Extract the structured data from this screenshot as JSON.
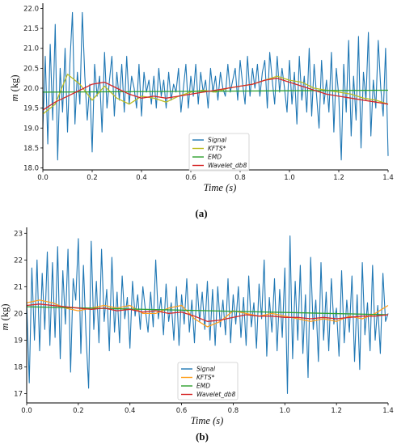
{
  "chart_data": [
    {
      "panel_label": "(a)",
      "type": "line",
      "xlabel_var": "Time",
      "xlabel_unit": "(s)",
      "ylabel_var": "m",
      "ylabel_unit": "(kg)",
      "xlim": [
        0.0,
        1.4
      ],
      "ylim": [
        17.95,
        22.05
      ],
      "xticks": [
        "0.0",
        "0.2",
        "0.4",
        "0.6",
        "0.8",
        "1.0",
        "1.2",
        "1.4"
      ],
      "yticks": [
        "18.0",
        "18.5",
        "19.0",
        "19.5",
        "20.0",
        "20.5",
        "21.0",
        "21.5",
        "22.0"
      ],
      "grid": false,
      "legend_placement": "lower-center",
      "series": [
        {
          "name": "Signal",
          "color": "#1f77b4",
          "x": [
            0,
            0.01,
            0.02,
            0.03,
            0.04,
            0.05,
            0.06,
            0.07,
            0.08,
            0.09,
            0.1,
            0.11,
            0.12,
            0.13,
            0.14,
            0.15,
            0.16,
            0.17,
            0.18,
            0.19,
            0.2,
            0.21,
            0.22,
            0.23,
            0.24,
            0.25,
            0.26,
            0.27,
            0.28,
            0.29,
            0.3,
            0.31,
            0.32,
            0.33,
            0.34,
            0.35,
            0.36,
            0.37,
            0.38,
            0.39,
            0.4,
            0.41,
            0.42,
            0.43,
            0.44,
            0.45,
            0.46,
            0.47,
            0.48,
            0.49,
            0.5,
            0.51,
            0.52,
            0.53,
            0.54,
            0.55,
            0.56,
            0.57,
            0.58,
            0.59,
            0.6,
            0.61,
            0.62,
            0.63,
            0.64,
            0.65,
            0.66,
            0.67,
            0.68,
            0.69,
            0.7,
            0.71,
            0.72,
            0.73,
            0.74,
            0.75,
            0.76,
            0.77,
            0.78,
            0.79,
            0.8,
            0.81,
            0.82,
            0.83,
            0.84,
            0.85,
            0.86,
            0.87,
            0.88,
            0.89,
            0.9,
            0.91,
            0.92,
            0.93,
            0.94,
            0.95,
            0.96,
            0.97,
            0.98,
            0.99,
            1.0,
            1.01,
            1.02,
            1.03,
            1.04,
            1.05,
            1.06,
            1.07,
            1.08,
            1.09,
            1.1,
            1.11,
            1.12,
            1.13,
            1.14,
            1.15,
            1.16,
            1.17,
            1.18,
            1.19,
            1.2,
            1.21,
            1.22,
            1.23,
            1.24,
            1.25,
            1.26,
            1.27,
            1.28,
            1.29,
            1.3,
            1.31,
            1.32,
            1.33,
            1.34,
            1.35,
            1.36,
            1.37,
            1.38,
            1.39,
            1.4
          ],
          "values": [
            19.0,
            20.8,
            18.6,
            21.1,
            19.2,
            21.6,
            18.2,
            20.5,
            19.4,
            21.0,
            18.9,
            20.7,
            21.9,
            19.1,
            20.4,
            19.6,
            21.9,
            20.3,
            19.2,
            20.1,
            18.4,
            20.6,
            19.8,
            20.3,
            18.9,
            20.9,
            19.5,
            20.2,
            20.8,
            19.3,
            20.4,
            19.7,
            20.6,
            19.4,
            20.8,
            19.6,
            20.3,
            20.0,
            19.5,
            20.6,
            19.3,
            20.4,
            19.9,
            20.2,
            19.6,
            20.3,
            19.5,
            20.5,
            19.8,
            20.2,
            19.5,
            20.4,
            19.7,
            20.1,
            19.9,
            20.5,
            19.4,
            20.0,
            20.6,
            19.5,
            20.3,
            19.8,
            20.6,
            19.6,
            20.4,
            19.9,
            20.2,
            19.5,
            20.5,
            19.9,
            20.3,
            19.7,
            20.4,
            20.0,
            19.8,
            20.6,
            19.9,
            20.2,
            20.5,
            19.7,
            20.7,
            20.1,
            19.6,
            20.8,
            19.8,
            20.5,
            20.0,
            20.6,
            19.8,
            20.4,
            20.7,
            19.5,
            20.9,
            20.2,
            19.6,
            20.8,
            19.9,
            20.5,
            20.0,
            19.4,
            20.7,
            19.6,
            20.4,
            19.1,
            20.8,
            19.7,
            20.3,
            19.4,
            21.0,
            19.3,
            20.6,
            19.8,
            19.0,
            20.7,
            19.6,
            20.2,
            19.4,
            20.9,
            18.9,
            20.5,
            19.8,
            18.2,
            20.6,
            19.4,
            21.2,
            18.8,
            20.3,
            19.2,
            21.3,
            18.5,
            20.4,
            19.7,
            21.4,
            18.8,
            20.2,
            19.5,
            21.2,
            20.0,
            19.3,
            21.0,
            18.3
          ]
        },
        {
          "name": "KFTS*",
          "color": "#bcbd22",
          "x": [
            0,
            0.05,
            0.1,
            0.15,
            0.2,
            0.25,
            0.3,
            0.35,
            0.4,
            0.45,
            0.5,
            0.55,
            0.6,
            0.65,
            0.7,
            0.75,
            0.8,
            0.85,
            0.9,
            0.95,
            1.0,
            1.05,
            1.1,
            1.15,
            1.2,
            1.25,
            1.3,
            1.35,
            1.4
          ],
          "values": [
            19.35,
            19.6,
            20.35,
            20.1,
            19.7,
            20.05,
            19.75,
            19.6,
            19.8,
            19.75,
            19.65,
            19.8,
            19.9,
            19.95,
            19.9,
            20.0,
            20.05,
            20.1,
            20.2,
            20.3,
            20.2,
            20.15,
            20.0,
            19.95,
            19.9,
            19.85,
            19.75,
            19.7,
            19.6
          ]
        },
        {
          "name": "EMD",
          "color": "#2ca02c",
          "x": [
            0,
            1.4
          ],
          "values": [
            19.9,
            19.95
          ]
        },
        {
          "name": "Wavelet_db8",
          "color": "#d62728",
          "x": [
            0,
            0.05,
            0.1,
            0.15,
            0.2,
            0.25,
            0.3,
            0.35,
            0.4,
            0.45,
            0.5,
            0.55,
            0.6,
            0.65,
            0.7,
            0.75,
            0.8,
            0.85,
            0.9,
            0.95,
            1.0,
            1.05,
            1.1,
            1.15,
            1.2,
            1.25,
            1.3,
            1.35,
            1.4
          ],
          "values": [
            19.45,
            19.65,
            19.8,
            19.95,
            20.1,
            20.15,
            20.0,
            19.85,
            19.75,
            19.8,
            19.75,
            19.8,
            19.85,
            19.9,
            19.95,
            20.0,
            20.05,
            20.1,
            20.2,
            20.25,
            20.15,
            20.05,
            19.95,
            19.85,
            19.8,
            19.75,
            19.7,
            19.65,
            19.6
          ]
        }
      ]
    },
    {
      "panel_label": "(b)",
      "type": "line",
      "xlabel_var": "Time",
      "xlabel_unit": "(s)",
      "ylabel_var": "m",
      "ylabel_unit": "(kg)",
      "xlim": [
        0.0,
        1.4
      ],
      "ylim": [
        16.65,
        23.1
      ],
      "xticks": [
        "0.0",
        "0.2",
        "0.4",
        "0.6",
        "0.8",
        "1.0",
        "1.2",
        "1.4"
      ],
      "yticks": [
        "17",
        "18",
        "19",
        "20",
        "21",
        "22",
        "23"
      ],
      "grid": false,
      "legend_placement": "lower-center",
      "series": [
        {
          "name": "Signal",
          "color": "#1f77b4",
          "x": [
            0,
            0.01,
            0.02,
            0.03,
            0.04,
            0.05,
            0.06,
            0.07,
            0.08,
            0.09,
            0.1,
            0.11,
            0.12,
            0.13,
            0.14,
            0.15,
            0.16,
            0.17,
            0.18,
            0.19,
            0.2,
            0.21,
            0.22,
            0.23,
            0.24,
            0.25,
            0.26,
            0.27,
            0.28,
            0.29,
            0.3,
            0.31,
            0.32,
            0.33,
            0.34,
            0.35,
            0.36,
            0.37,
            0.38,
            0.39,
            0.4,
            0.41,
            0.42,
            0.43,
            0.44,
            0.45,
            0.46,
            0.47,
            0.48,
            0.49,
            0.5,
            0.51,
            0.52,
            0.53,
            0.54,
            0.55,
            0.56,
            0.57,
            0.58,
            0.59,
            0.6,
            0.61,
            0.62,
            0.63,
            0.64,
            0.65,
            0.66,
            0.67,
            0.68,
            0.69,
            0.7,
            0.71,
            0.72,
            0.73,
            0.74,
            0.75,
            0.76,
            0.77,
            0.78,
            0.79,
            0.8,
            0.81,
            0.82,
            0.83,
            0.84,
            0.85,
            0.86,
            0.87,
            0.88,
            0.89,
            0.9,
            0.91,
            0.92,
            0.93,
            0.94,
            0.95,
            0.96,
            0.97,
            0.98,
            0.99,
            1.0,
            1.01,
            1.02,
            1.03,
            1.04,
            1.05,
            1.06,
            1.07,
            1.08,
            1.09,
            1.1,
            1.11,
            1.12,
            1.13,
            1.14,
            1.15,
            1.16,
            1.17,
            1.18,
            1.19,
            1.2,
            1.21,
            1.22,
            1.23,
            1.24,
            1.25,
            1.26,
            1.27,
            1.28,
            1.29,
            1.3,
            1.31,
            1.32,
            1.33,
            1.34,
            1.35,
            1.36,
            1.37,
            1.38,
            1.39,
            1.4
          ],
          "values": [
            20.4,
            17.4,
            21.7,
            19.0,
            22.0,
            18.6,
            21.5,
            19.4,
            22.3,
            18.8,
            21.9,
            19.1,
            22.5,
            18.3,
            21.6,
            19.6,
            22.4,
            17.8,
            21.3,
            20.5,
            22.8,
            18.5,
            21.8,
            19.2,
            17.2,
            22.7,
            19.4,
            21.2,
            18.9,
            22.4,
            19.7,
            20.9,
            18.6,
            22.1,
            19.3,
            20.8,
            18.9,
            21.4,
            19.8,
            20.6,
            18.7,
            21.2,
            19.9,
            20.7,
            19.4,
            21.0,
            20.1,
            19.3,
            20.8,
            19.5,
            22.0,
            19.8,
            20.6,
            19.2,
            21.1,
            19.7,
            20.4,
            19.0,
            21.0,
            18.8,
            20.7,
            19.6,
            21.3,
            19.3,
            20.5,
            18.9,
            21.1,
            19.7,
            20.8,
            19.4,
            21.2,
            19.0,
            20.9,
            18.8,
            21.0,
            19.5,
            20.5,
            19.2,
            21.3,
            18.9,
            20.7,
            19.6,
            21.0,
            19.1,
            20.6,
            18.8,
            21.4,
            19.5,
            20.4,
            18.7,
            21.1,
            19.8,
            22.0,
            18.4,
            20.6,
            19.3,
            21.3,
            18.6,
            20.9,
            19.1,
            21.7,
            17.0,
            22.9,
            18.3,
            21.2,
            19.0,
            21.8,
            18.5,
            20.7,
            17.6,
            22.1,
            19.4,
            20.5,
            18.2,
            21.9,
            19.0,
            20.8,
            18.6,
            21.3,
            19.6,
            20.2,
            18.4,
            21.6,
            18.9,
            20.5,
            19.3,
            21.4,
            18.2,
            20.7,
            17.9,
            21.9,
            19.2,
            20.4,
            18.6,
            21.8,
            19.0,
            20.3,
            18.5,
            21.5,
            19.7,
            20.0
          ]
        },
        {
          "name": "KFTS*",
          "color": "#ff9f1c",
          "x": [
            0,
            0.05,
            0.1,
            0.15,
            0.2,
            0.25,
            0.3,
            0.35,
            0.4,
            0.45,
            0.5,
            0.55,
            0.6,
            0.65,
            0.7,
            0.75,
            0.8,
            0.85,
            0.9,
            0.95,
            1.0,
            1.05,
            1.1,
            1.15,
            1.2,
            1.25,
            1.3,
            1.35,
            1.4
          ],
          "values": [
            20.4,
            20.5,
            20.4,
            20.2,
            20.1,
            20.2,
            20.3,
            20.2,
            20.3,
            20.0,
            20.0,
            20.2,
            20.3,
            19.8,
            19.5,
            19.7,
            20.1,
            20.0,
            19.9,
            20.0,
            19.9,
            19.8,
            19.7,
            19.8,
            19.7,
            19.9,
            19.8,
            20.0,
            20.3
          ]
        },
        {
          "name": "EMD",
          "color": "#2ca02c",
          "x": [
            0,
            1.4
          ],
          "values": [
            20.25,
            19.95
          ]
        },
        {
          "name": "Wavelet_db8",
          "color": "#d62728",
          "x": [
            0,
            0.05,
            0.1,
            0.15,
            0.2,
            0.25,
            0.3,
            0.35,
            0.4,
            0.45,
            0.5,
            0.55,
            0.6,
            0.65,
            0.7,
            0.75,
            0.8,
            0.85,
            0.9,
            0.95,
            1.0,
            1.05,
            1.1,
            1.15,
            1.2,
            1.25,
            1.3,
            1.35,
            1.4
          ],
          "values": [
            20.3,
            20.35,
            20.3,
            20.25,
            20.2,
            20.15,
            20.2,
            20.1,
            20.15,
            20.05,
            20.1,
            20.0,
            20.05,
            19.9,
            19.7,
            19.75,
            19.85,
            19.95,
            19.9,
            19.9,
            19.85,
            19.85,
            19.8,
            19.85,
            19.8,
            19.85,
            19.9,
            19.9,
            19.95
          ]
        }
      ]
    }
  ]
}
